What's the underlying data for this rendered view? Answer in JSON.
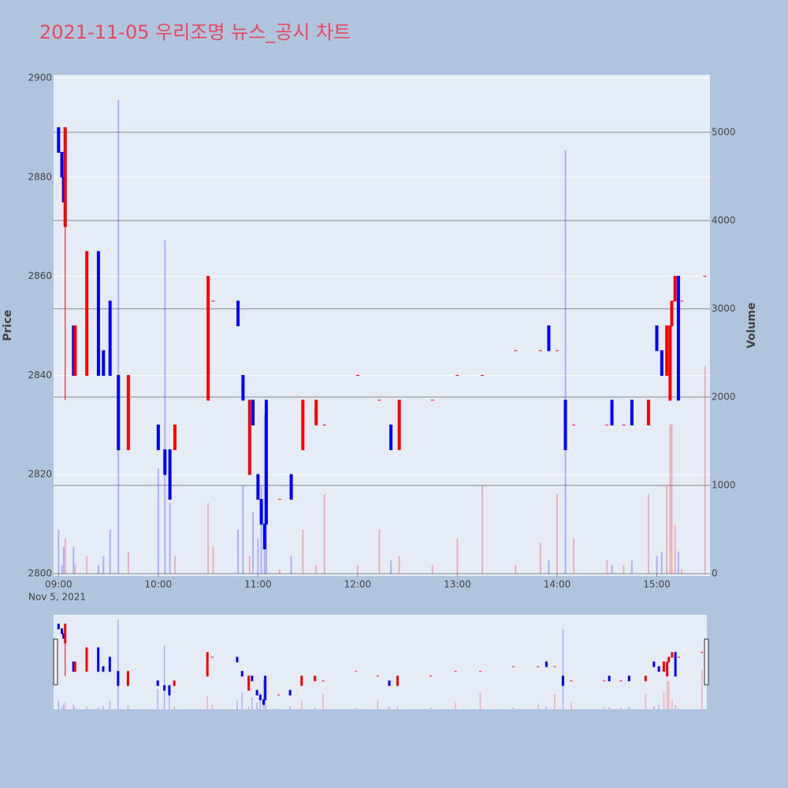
{
  "chart_data": {
    "type": "candlestick",
    "title": "2021-11-05 우리조명 뉴스_공시 차트",
    "x_date_label": "Nov 5, 2021",
    "ylabel": "Price",
    "y2label": "Volume",
    "xlim": [
      "08:57",
      "15:32"
    ],
    "xticks": [
      "09:00",
      "10:00",
      "11:00",
      "12:00",
      "13:00",
      "14:00",
      "15:00"
    ],
    "ylim": [
      2800,
      2900
    ],
    "yticks": [
      2800,
      2820,
      2840,
      2860,
      2880,
      2900
    ],
    "y2lim": [
      0,
      5650
    ],
    "y2ticks": [
      0,
      1000,
      2000,
      3000,
      4000,
      5000
    ],
    "increasing_color": "#ff0000",
    "decreasing_color": "#0000ff",
    "x": [
      "09:00",
      "09:02",
      "09:03",
      "09:04",
      "09:09",
      "09:10",
      "09:17",
      "09:24",
      "09:27",
      "09:31",
      "09:36",
      "09:42",
      "10:00",
      "10:04",
      "10:07",
      "10:10",
      "10:30",
      "10:33",
      "10:48",
      "10:51",
      "10:55",
      "10:57",
      "11:00",
      "11:02",
      "11:04",
      "11:05",
      "11:13",
      "11:20",
      "11:27",
      "11:35",
      "11:40",
      "12:00",
      "12:13",
      "12:20",
      "12:25",
      "12:45",
      "13:00",
      "13:15",
      "13:35",
      "13:50",
      "13:55",
      "14:00",
      "14:05",
      "14:10",
      "14:30",
      "14:33",
      "14:40",
      "14:45",
      "14:55",
      "15:00",
      "15:03",
      "15:06",
      "15:08",
      "15:09",
      "15:11",
      "15:13",
      "15:15",
      "15:29"
    ],
    "open": [
      2890,
      2885,
      2880,
      2870,
      2850,
      2840,
      2840,
      2865,
      2845,
      2855,
      2840,
      2825,
      2830,
      2825,
      2825,
      2825,
      2835,
      2855,
      2855,
      2840,
      2820,
      2835,
      2820,
      2815,
      2810,
      2835,
      2815,
      2820,
      2825,
      2830,
      2830,
      2840,
      2835,
      2830,
      2825,
      2835,
      2840,
      2840,
      2845,
      2845,
      2850,
      2845,
      2835,
      2830,
      2830,
      2835,
      2830,
      2835,
      2830,
      2850,
      2845,
      2840,
      2835,
      2850,
      2855,
      2860,
      2855,
      2860
    ],
    "high": [
      2890,
      2885,
      2880,
      2890,
      2850,
      2850,
      2865,
      2865,
      2845,
      2855,
      2840,
      2840,
      2830,
      2825,
      2825,
      2830,
      2860,
      2855,
      2855,
      2840,
      2835,
      2835,
      2820,
      2815,
      2810,
      2835,
      2815,
      2820,
      2835,
      2835,
      2830,
      2840,
      2835,
      2830,
      2835,
      2835,
      2840,
      2840,
      2845,
      2845,
      2850,
      2845,
      2835,
      2830,
      2830,
      2835,
      2830,
      2835,
      2835,
      2850,
      2845,
      2850,
      2850,
      2855,
      2860,
      2860,
      2855,
      2860
    ],
    "low": [
      2885,
      2880,
      2875,
      2835,
      2840,
      2840,
      2840,
      2840,
      2840,
      2840,
      2825,
      2825,
      2825,
      2820,
      2815,
      2825,
      2835,
      2855,
      2850,
      2835,
      2820,
      2830,
      2815,
      2810,
      2805,
      2810,
      2815,
      2815,
      2825,
      2830,
      2830,
      2840,
      2835,
      2825,
      2825,
      2835,
      2840,
      2840,
      2845,
      2845,
      2845,
      2845,
      2825,
      2830,
      2830,
      2830,
      2830,
      2830,
      2830,
      2845,
      2840,
      2840,
      2835,
      2850,
      2855,
      2835,
      2855,
      2860
    ],
    "close": [
      2885,
      2880,
      2875,
      2890,
      2840,
      2850,
      2865,
      2840,
      2840,
      2840,
      2825,
      2840,
      2825,
      2820,
      2815,
      2830,
      2860,
      2855,
      2850,
      2835,
      2835,
      2830,
      2815,
      2810,
      2805,
      2810,
      2815,
      2815,
      2835,
      2835,
      2830,
      2840,
      2835,
      2825,
      2835,
      2835,
      2840,
      2840,
      2845,
      2845,
      2845,
      2845,
      2825,
      2830,
      2830,
      2830,
      2830,
      2830,
      2835,
      2845,
      2840,
      2850,
      2850,
      2855,
      2860,
      2835,
      2855,
      2860
    ],
    "volume": [
      500,
      100,
      300,
      400,
      300,
      100,
      200,
      100,
      200,
      500,
      5370,
      250,
      1190,
      3780,
      800,
      200,
      800,
      300,
      500,
      1000,
      200,
      700,
      400,
      1000,
      1800,
      1600,
      50,
      200,
      500,
      100,
      900,
      100,
      500,
      150,
      200,
      100,
      400,
      1000,
      100,
      350,
      150,
      900,
      4800,
      400,
      150,
      100,
      100,
      150,
      900,
      200,
      250,
      1000,
      1690,
      1700,
      550,
      250,
      50,
      2350
    ]
  }
}
